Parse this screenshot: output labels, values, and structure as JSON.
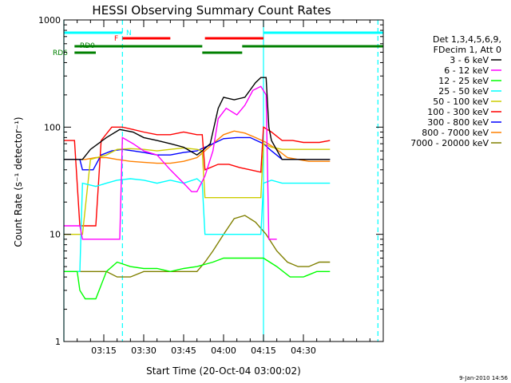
{
  "chart_data": {
    "type": "line",
    "title": "HESSI Observing Summary Count Rates",
    "xlabel": "Start Time (20-Oct-04 03:00:02)",
    "ylabel": "Count Rate (s⁻¹ detector⁻¹)",
    "yscale": "log",
    "ylim": [
      1,
      1000
    ],
    "xlim_min": [
      180,
      300
    ],
    "x_ticks_min": [
      195,
      210,
      225,
      240,
      255,
      270
    ],
    "x_tick_labels": [
      "03:15",
      "03:30",
      "03:45",
      "04:00",
      "04:15",
      "04:30"
    ],
    "y_ticks": [
      1,
      10,
      100,
      1000
    ],
    "y_tick_labels": [
      "1",
      "10",
      "100",
      "1000"
    ],
    "legend_header": [
      "Det 1,3,4,5,6,9,",
      "FDecim 1, Att 0"
    ],
    "legend_position": "right",
    "footer_date": "9-Jan-2010 14:56",
    "flag_labels": {
      "N": "N",
      "F": "F",
      "RD0": "RD0",
      "RD6": "RD6"
    },
    "flags": [
      {
        "name": "N",
        "color": "#00ffff",
        "segments": [
          [
            180,
            202
          ],
          [
            255,
            300
          ]
        ]
      },
      {
        "name": "F",
        "color": "#ff0000",
        "segments": [
          [
            202,
            220
          ],
          [
            233,
            255
          ]
        ]
      },
      {
        "name": "RD0",
        "color": "#008000",
        "segments": [
          [
            184,
            232
          ],
          [
            247,
            300
          ]
        ]
      },
      {
        "name": "RD6",
        "color": "#008000",
        "segments": [
          [
            184,
            192
          ],
          [
            232,
            247
          ]
        ]
      }
    ],
    "vlines": [
      {
        "x": 180,
        "color": "#00ffff",
        "style": "solid"
      },
      {
        "x": 202,
        "color": "#00ffff",
        "style": "dashed"
      },
      {
        "x": 255,
        "color": "#00ffff",
        "style": "solid"
      },
      {
        "x": 298,
        "color": "#00ffff",
        "style": "dashed"
      }
    ],
    "series": [
      {
        "name": "3 - 6 keV",
        "color": "#000000",
        "points": [
          [
            180,
            50
          ],
          [
            187,
            50
          ],
          [
            190,
            62
          ],
          [
            196,
            80
          ],
          [
            201,
            95
          ],
          [
            206,
            90
          ],
          [
            210,
            80
          ],
          [
            215,
            75
          ],
          [
            220,
            70
          ],
          [
            225,
            65
          ],
          [
            230,
            55
          ],
          [
            232,
            60
          ],
          [
            235,
            70
          ],
          [
            238,
            150
          ],
          [
            240,
            190
          ],
          [
            244,
            180
          ],
          [
            248,
            190
          ],
          [
            252,
            260
          ],
          [
            254,
            290
          ],
          [
            256,
            290
          ],
          [
            257,
            100
          ],
          [
            258,
            75
          ],
          [
            262,
            50
          ],
          [
            266,
            50
          ],
          [
            270,
            50
          ],
          [
            276,
            50
          ],
          [
            280,
            50
          ]
        ]
      },
      {
        "name": "6 - 12 keV",
        "color": "#ff00ff",
        "points": [
          [
            180,
            12
          ],
          [
            186,
            12
          ],
          [
            187,
            9
          ],
          [
            192,
            9
          ],
          [
            196,
            9
          ],
          [
            201,
            9
          ],
          [
            202,
            80
          ],
          [
            206,
            70
          ],
          [
            210,
            60
          ],
          [
            215,
            55
          ],
          [
            220,
            40
          ],
          [
            225,
            30
          ],
          [
            228,
            25
          ],
          [
            230,
            25
          ],
          [
            233,
            35
          ],
          [
            236,
            60
          ],
          [
            238,
            120
          ],
          [
            241,
            150
          ],
          [
            245,
            130
          ],
          [
            248,
            160
          ],
          [
            251,
            220
          ],
          [
            254,
            240
          ],
          [
            256,
            200
          ],
          [
            257,
            9
          ],
          [
            259,
            9
          ],
          [
            260,
            9
          ]
        ]
      },
      {
        "name": "12 - 25 keV",
        "color": "#00ff00",
        "points": [
          [
            180,
            4.5
          ],
          [
            185,
            4.5
          ],
          [
            186,
            3.0
          ],
          [
            188,
            2.5
          ],
          [
            192,
            2.5
          ],
          [
            196,
            4.5
          ],
          [
            200,
            5.5
          ],
          [
            205,
            5.0
          ],
          [
            210,
            4.8
          ],
          [
            215,
            4.8
          ],
          [
            220,
            4.5
          ],
          [
            225,
            4.8
          ],
          [
            230,
            5.0
          ],
          [
            236,
            5.5
          ],
          [
            240,
            6.0
          ],
          [
            245,
            6.0
          ],
          [
            250,
            6.0
          ],
          [
            255,
            6.0
          ],
          [
            260,
            5.0
          ],
          [
            265,
            4.0
          ],
          [
            270,
            4.0
          ],
          [
            275,
            4.5
          ],
          [
            280,
            4.5
          ]
        ]
      },
      {
        "name": "25 - 50 keV",
        "color": "#00ffff",
        "points": [
          [
            180,
            4.5
          ],
          [
            186,
            4.5
          ],
          [
            187,
            30
          ],
          [
            192,
            28
          ],
          [
            196,
            30
          ],
          [
            200,
            32
          ],
          [
            205,
            33
          ],
          [
            210,
            32
          ],
          [
            215,
            30
          ],
          [
            220,
            32
          ],
          [
            225,
            30
          ],
          [
            230,
            33
          ],
          [
            232,
            30
          ],
          [
            233,
            10
          ],
          [
            238,
            10
          ],
          [
            242,
            10
          ],
          [
            246,
            10
          ],
          [
            250,
            10
          ],
          [
            254,
            10
          ],
          [
            255,
            30
          ],
          [
            258,
            32
          ],
          [
            262,
            30
          ],
          [
            266,
            30
          ],
          [
            270,
            30
          ],
          [
            276,
            30
          ],
          [
            280,
            30
          ]
        ]
      },
      {
        "name": "50 - 100 keV",
        "color": "#cccc00",
        "points": [
          [
            180,
            10
          ],
          [
            186,
            10
          ],
          [
            187,
            10
          ],
          [
            190,
            50
          ],
          [
            196,
            55
          ],
          [
            200,
            62
          ],
          [
            205,
            63
          ],
          [
            210,
            62
          ],
          [
            215,
            60
          ],
          [
            220,
            62
          ],
          [
            225,
            64
          ],
          [
            230,
            62
          ],
          [
            232,
            60
          ],
          [
            233,
            22
          ],
          [
            240,
            22
          ],
          [
            245,
            22
          ],
          [
            250,
            22
          ],
          [
            254,
            22
          ],
          [
            255,
            70
          ],
          [
            258,
            65
          ],
          [
            262,
            62
          ],
          [
            266,
            62
          ],
          [
            270,
            62
          ],
          [
            276,
            62
          ],
          [
            280,
            62
          ]
        ]
      },
      {
        "name": "100 - 300 keV",
        "color": "#ff0000",
        "points": [
          [
            180,
            75
          ],
          [
            184,
            75
          ],
          [
            186,
            12
          ],
          [
            190,
            12
          ],
          [
            192,
            12
          ],
          [
            194,
            75
          ],
          [
            198,
            100
          ],
          [
            202,
            100
          ],
          [
            206,
            95
          ],
          [
            210,
            90
          ],
          [
            215,
            85
          ],
          [
            220,
            85
          ],
          [
            225,
            90
          ],
          [
            230,
            85
          ],
          [
            232,
            85
          ],
          [
            233,
            40
          ],
          [
            238,
            45
          ],
          [
            242,
            45
          ],
          [
            246,
            42
          ],
          [
            250,
            40
          ],
          [
            254,
            38
          ],
          [
            255,
            100
          ],
          [
            258,
            90
          ],
          [
            262,
            75
          ],
          [
            266,
            75
          ],
          [
            270,
            72
          ],
          [
            276,
            72
          ],
          [
            280,
            75
          ]
        ]
      },
      {
        "name": "300 - 800 keV",
        "color": "#0000ff",
        "points": [
          [
            180,
            50
          ],
          [
            186,
            50
          ],
          [
            187,
            40
          ],
          [
            191,
            40
          ],
          [
            194,
            55
          ],
          [
            198,
            60
          ],
          [
            202,
            62
          ],
          [
            206,
            60
          ],
          [
            210,
            58
          ],
          [
            215,
            55
          ],
          [
            220,
            55
          ],
          [
            225,
            58
          ],
          [
            230,
            60
          ],
          [
            233,
            65
          ],
          [
            236,
            70
          ],
          [
            240,
            78
          ],
          [
            245,
            80
          ],
          [
            250,
            80
          ],
          [
            255,
            70
          ],
          [
            258,
            60
          ],
          [
            262,
            50
          ],
          [
            266,
            50
          ],
          [
            270,
            50
          ],
          [
            276,
            50
          ],
          [
            280,
            50
          ]
        ]
      },
      {
        "name": "800 - 7000 keV",
        "color": "#ff8000",
        "points": [
          [
            180,
            50
          ],
          [
            184,
            50
          ],
          [
            188,
            50
          ],
          [
            192,
            52
          ],
          [
            196,
            52
          ],
          [
            200,
            50
          ],
          [
            205,
            48
          ],
          [
            210,
            47
          ],
          [
            215,
            46
          ],
          [
            220,
            46
          ],
          [
            225,
            48
          ],
          [
            230,
            52
          ],
          [
            233,
            60
          ],
          [
            236,
            70
          ],
          [
            240,
            85
          ],
          [
            244,
            92
          ],
          [
            248,
            88
          ],
          [
            252,
            80
          ],
          [
            256,
            72
          ],
          [
            260,
            62
          ],
          [
            264,
            52
          ],
          [
            268,
            50
          ],
          [
            272,
            48
          ],
          [
            276,
            48
          ],
          [
            280,
            48
          ]
        ]
      },
      {
        "name": "7000 - 20000 keV",
        "color": "#808000",
        "points": [
          [
            180,
            4.5
          ],
          [
            186,
            4.5
          ],
          [
            190,
            4.5
          ],
          [
            196,
            4.5
          ],
          [
            200,
            4.0
          ],
          [
            205,
            4.0
          ],
          [
            210,
            4.5
          ],
          [
            215,
            4.5
          ],
          [
            220,
            4.5
          ],
          [
            225,
            4.5
          ],
          [
            230,
            4.5
          ],
          [
            233,
            5.5
          ],
          [
            236,
            7.0
          ],
          [
            240,
            10
          ],
          [
            244,
            14
          ],
          [
            248,
            15
          ],
          [
            252,
            13
          ],
          [
            256,
            10
          ],
          [
            260,
            7.0
          ],
          [
            264,
            5.5
          ],
          [
            268,
            5.0
          ],
          [
            272,
            5.0
          ],
          [
            276,
            5.5
          ],
          [
            280,
            5.5
          ]
        ]
      }
    ]
  }
}
